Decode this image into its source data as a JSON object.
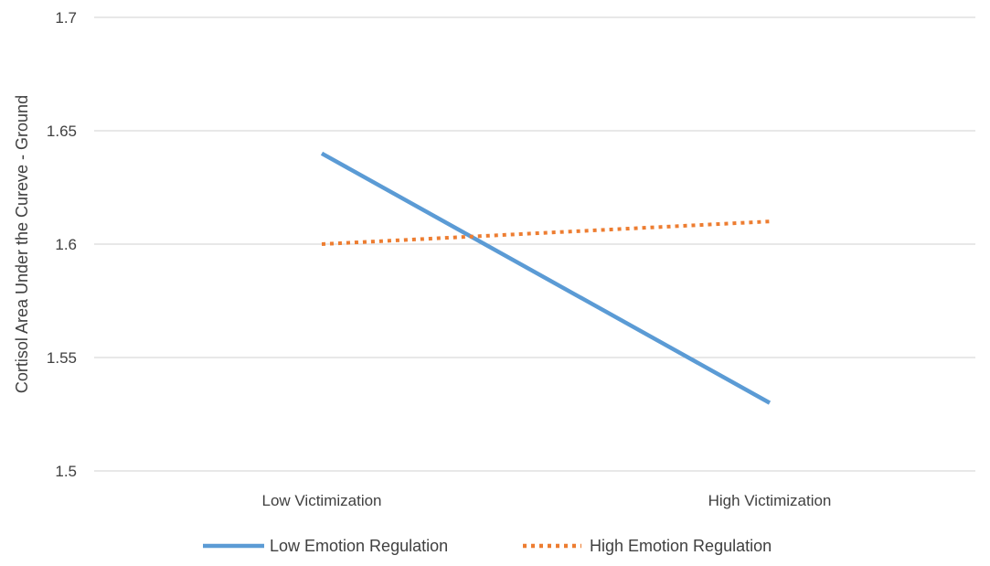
{
  "chart_data": {
    "type": "line",
    "title": "",
    "xlabel": "",
    "ylabel": "Cortisol Area Under the Cureve - Ground",
    "categories": [
      "Low Victimization",
      "High Victimization"
    ],
    "ylim": [
      1.5,
      1.7
    ],
    "yticks": [
      1.5,
      1.55,
      1.6,
      1.65,
      1.7
    ],
    "ytick_labels": [
      "1.5",
      "1.55",
      "1.6",
      "1.65",
      "1.7"
    ],
    "grid": true,
    "legend_position": "bottom",
    "series": [
      {
        "name": "Low Emotion Regulation",
        "values": [
          1.64,
          1.53
        ],
        "color": "#5b9bd5",
        "style": "solid"
      },
      {
        "name": "High Emotion Regulation",
        "values": [
          1.6,
          1.61
        ],
        "color": "#ed7d31",
        "style": "dotted"
      }
    ],
    "gridline_color": "#d9d9d9"
  }
}
